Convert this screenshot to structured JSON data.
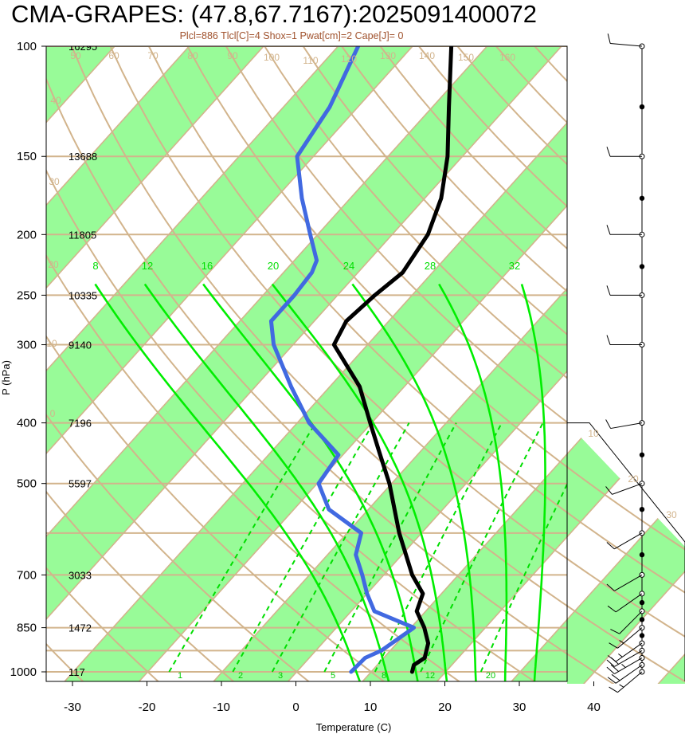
{
  "chart_data": {
    "type": "line",
    "title": "CMA-GRAPES: (47.8,67.7167):2025091400072",
    "subtitle": "Plcl=886 Tlcl[C]=4 Shox=1 Pwat[cm]=2 Cape[J]= 0",
    "xlabel": "Temperature (C)",
    "ylabel": "P (hPa)",
    "xlim": [
      -34,
      36
    ],
    "ylim": [
      1050,
      100
    ],
    "x_ticks": [
      "-30",
      "-20",
      "-10",
      "0",
      "10",
      "20",
      "30",
      "40"
    ],
    "pressure_levels": [
      {
        "p": 100,
        "label": "100",
        "height": "16295"
      },
      {
        "p": 150,
        "label": "150",
        "height": "13688"
      },
      {
        "p": 200,
        "label": "200",
        "height": "11805"
      },
      {
        "p": 250,
        "label": "250",
        "height": "10335"
      },
      {
        "p": 300,
        "label": "300",
        "height": "9140"
      },
      {
        "p": 400,
        "label": "400",
        "height": "7196"
      },
      {
        "p": 500,
        "label": "500",
        "height": "5597"
      },
      {
        "p": 700,
        "label": "700",
        "height": "3033"
      },
      {
        "p": 850,
        "label": "850",
        "height": "1472"
      },
      {
        "p": 1000,
        "label": "1000",
        "height": "117"
      }
    ],
    "extra_isobars": [
      600,
      925
    ],
    "dry_adiabat_labels": [
      "-30",
      "-20",
      "-10",
      "0",
      "10",
      "20",
      "30",
      "40",
      "50",
      "60",
      "70",
      "80",
      "90",
      "100",
      "110",
      "120",
      "130",
      "140",
      "150",
      "160"
    ],
    "moist_adiabat_labels": [
      "8",
      "12",
      "16",
      "20",
      "24",
      "28",
      "32"
    ],
    "mixing_ratio_labels": [
      "1",
      "2",
      "3",
      "5",
      "8",
      "12",
      "20"
    ],
    "series": [
      {
        "kind": "temperature",
        "color": "#000000",
        "points": [
          [
            1000,
            15.5
          ],
          [
            975,
            14.9
          ],
          [
            950,
            15.5
          ],
          [
            900,
            14.2
          ],
          [
            850,
            11.8
          ],
          [
            800,
            8.8
          ],
          [
            750,
            7.5
          ],
          [
            700,
            3.8
          ],
          [
            600,
            -3.0
          ],
          [
            500,
            -10.3
          ],
          [
            450,
            -15.0
          ],
          [
            400,
            -20.2
          ],
          [
            350,
            -26.0
          ],
          [
            300,
            -34.5
          ],
          [
            275,
            -35.7
          ],
          [
            250,
            -35.0
          ],
          [
            230,
            -34.0
          ],
          [
            200,
            -35.2
          ],
          [
            175,
            -37.8
          ],
          [
            150,
            -42.0
          ],
          [
            125,
            -47.8
          ],
          [
            100,
            -54.8
          ]
        ]
      },
      {
        "kind": "dewpoint",
        "color": "#4169e1",
        "points": [
          [
            1000,
            7.3
          ],
          [
            950,
            7.5
          ],
          [
            925,
            8.8
          ],
          [
            850,
            10.4
          ],
          [
            800,
            3.1
          ],
          [
            750,
            0.0
          ],
          [
            700,
            -2.9
          ],
          [
            650,
            -6.2
          ],
          [
            600,
            -8.1
          ],
          [
            550,
            -15.3
          ],
          [
            500,
            -19.8
          ],
          [
            450,
            -20.6
          ],
          [
            400,
            -28.4
          ],
          [
            350,
            -35.2
          ],
          [
            300,
            -42.6
          ],
          [
            275,
            -45.8
          ],
          [
            250,
            -45.8
          ],
          [
            230,
            -46.2
          ],
          [
            220,
            -47.0
          ],
          [
            200,
            -51.0
          ],
          [
            175,
            -56.5
          ],
          [
            150,
            -62.2
          ],
          [
            125,
            -63.8
          ],
          [
            100,
            -67.3
          ]
        ]
      }
    ],
    "wind_barbs": [
      {
        "p": 1000,
        "dir": 230,
        "spd": 15
      },
      {
        "p": 975,
        "dir": 235,
        "spd": 20
      },
      {
        "p": 950,
        "dir": 240,
        "spd": 25
      },
      {
        "p": 925,
        "dir": 240,
        "spd": 20
      },
      {
        "p": 900,
        "dir": 235,
        "spd": 15
      },
      {
        "p": 850,
        "dir": 230,
        "spd": 15
      },
      {
        "p": 800,
        "dir": 225,
        "spd": 10
      },
      {
        "p": 750,
        "dir": 235,
        "spd": 10
      },
      {
        "p": 700,
        "dir": 240,
        "spd": 10
      },
      {
        "p": 600,
        "dir": 240,
        "spd": 10
      },
      {
        "p": 500,
        "dir": 250,
        "spd": 10
      },
      {
        "p": 400,
        "dir": 260,
        "spd": 10
      },
      {
        "p": 300,
        "dir": 270,
        "spd": 10
      },
      {
        "p": 250,
        "dir": 270,
        "spd": 10
      },
      {
        "p": 200,
        "dir": 270,
        "spd": 10
      },
      {
        "p": 150,
        "dir": 270,
        "spd": 10
      },
      {
        "p": 100,
        "dir": 275,
        "spd": 10
      }
    ],
    "wind_dots": [
      1000,
      975,
      950,
      925,
      900,
      875,
      850,
      825,
      800,
      775,
      750,
      700,
      650,
      600,
      550,
      500,
      450,
      400,
      300,
      225,
      175,
      150,
      125,
      100
    ],
    "colors": {
      "shade": "#98fb98",
      "isobar": "#d2b48c",
      "adiabat": "#d2b48c",
      "moist": "#00ee00",
      "mixing": "#00dd00",
      "temperature": "#000000",
      "dewpoint": "#4169e1",
      "subtitle": "#a0522d"
    }
  }
}
